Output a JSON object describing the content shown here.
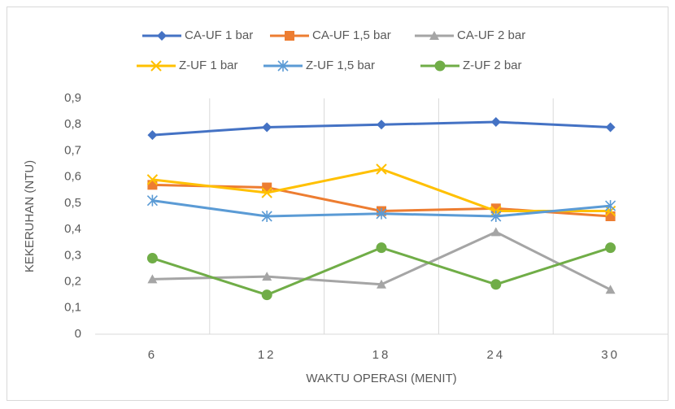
{
  "chart_data": {
    "type": "line",
    "categories": [
      "6",
      "12",
      "18",
      "24",
      "30"
    ],
    "x_label": "WAKTU OPERASI (MENIT)",
    "y_label": "KEKERUHAN (NTU)",
    "ylim": [
      0,
      0.9
    ],
    "yticks": [
      0,
      {
        "value": 0.1,
        "label": "0,1"
      },
      {
        "value": 0.2,
        "label": "0,2"
      },
      {
        "value": 0.3,
        "label": "0,3"
      },
      {
        "value": 0.4,
        "label": "0,4"
      },
      {
        "value": 0.5,
        "label": "0,5"
      },
      {
        "value": 0.6,
        "label": "0,6"
      },
      {
        "value": 0.7,
        "label": "0,7"
      },
      {
        "value": 0.8,
        "label": "0,8"
      },
      {
        "value": 0.9,
        "label": "0,9"
      }
    ],
    "legend": "top",
    "series": [
      {
        "name": "CA-UF 1 bar",
        "color": "#4472c4",
        "marker": "diamond",
        "values": [
          0.76,
          0.79,
          0.8,
          0.81,
          0.79
        ]
      },
      {
        "name": "CA-UF 1,5 bar",
        "color": "#ed7d31",
        "marker": "square",
        "values": [
          0.57,
          0.56,
          0.47,
          0.48,
          0.45
        ]
      },
      {
        "name": "CA-UF 2 bar",
        "color": "#a5a5a5",
        "marker": "triangle",
        "values": [
          0.21,
          0.22,
          0.19,
          0.39,
          0.17
        ]
      },
      {
        "name": "Z-UF 1 bar",
        "color": "#ffc000",
        "marker": "x",
        "values": [
          0.59,
          0.54,
          0.63,
          0.47,
          0.47
        ]
      },
      {
        "name": "Z-UF 1,5 bar",
        "color": "#5b9bd5",
        "marker": "star",
        "values": [
          0.51,
          0.45,
          0.46,
          0.45,
          0.49
        ]
      },
      {
        "name": "Z-UF 2 bar",
        "color": "#70ad47",
        "marker": "circle",
        "values": [
          0.29,
          0.15,
          0.33,
          0.19,
          0.33
        ]
      }
    ]
  }
}
